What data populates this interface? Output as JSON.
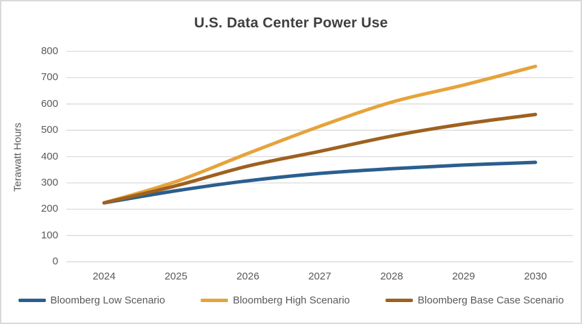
{
  "window": {
    "background": "#ffffff",
    "border_color": "#d9d9d9"
  },
  "styles": {
    "title_color": "#3f3f3f",
    "axis_text_color": "#595959",
    "gridline_color": "#dadada",
    "legend_text_color": "#595959"
  },
  "chart_data": {
    "type": "line",
    "title": "U.S. Data Center Power Use",
    "xlabel": "",
    "ylabel": "Terawatt Hours",
    "categories": [
      "2024",
      "2025",
      "2026",
      "2027",
      "2028",
      "2029",
      "2030"
    ],
    "series": [
      {
        "name": "Bloomberg Low Scenario",
        "color": "#2a5f8f",
        "values": [
          224,
          270,
          308,
          336,
          354,
          368,
          378
        ]
      },
      {
        "name": "Bloomberg High Scenario",
        "color": "#e6a33c",
        "values": [
          224,
          305,
          412,
          515,
          607,
          672,
          743
        ]
      },
      {
        "name": "Bloomberg Base Case Scenario",
        "color": "#9e6120",
        "values": [
          224,
          289,
          364,
          420,
          478,
          524,
          560
        ]
      }
    ],
    "ylim": [
      0,
      800
    ],
    "ytick_step": 100,
    "grid": true,
    "legend_position": "bottom"
  }
}
